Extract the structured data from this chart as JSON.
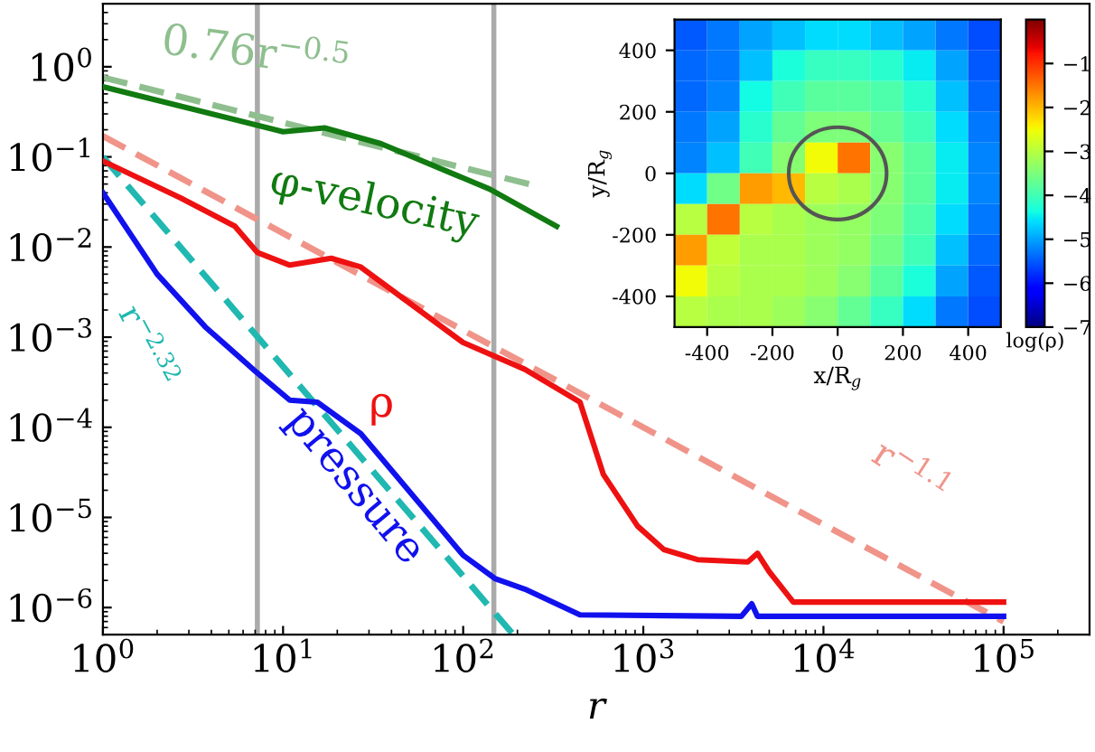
{
  "chart_data": [
    {
      "type": "line",
      "xlabel": "r",
      "log": "xy",
      "grid": false,
      "legend": false,
      "xlim": [
        1,
        300000
      ],
      "ylim": [
        5e-07,
        5
      ],
      "xticks": [
        {
          "value": 1,
          "label": "10$^{0}$"
        },
        {
          "value": 10,
          "label": "10$^{1}$"
        },
        {
          "value": 100,
          "label": "10$^{2}$"
        },
        {
          "value": 1000,
          "label": "10$^{3}$"
        },
        {
          "value": 10000,
          "label": "10$^{4}$"
        },
        {
          "value": 100000,
          "label": "10$^{5}$"
        }
      ],
      "yticks": [
        {
          "value": 1,
          "label": "10$^{0}$"
        },
        {
          "value": 0.1,
          "label": "10$^{−1}$"
        },
        {
          "value": 0.01,
          "label": "10$^{−2}$"
        },
        {
          "value": 0.001,
          "label": "10$^{−3}$"
        },
        {
          "value": 0.0001,
          "label": "10$^{−4}$"
        },
        {
          "value": 1e-05,
          "label": "10$^{−5}$"
        },
        {
          "value": 1e-06,
          "label": "10$^{−6}$"
        }
      ],
      "series": [
        {
          "name": "0.76r$^{−0.5}$",
          "color": "#8fbf8f",
          "line_style": "dashed",
          "x": [
            1,
            250
          ],
          "values": [
            0.76,
            0.048
          ]
        },
        {
          "name": "r$^{−1.1}$",
          "color": "#f0948a",
          "line_style": "dashed",
          "x": [
            1,
            100000
          ],
          "values": [
            0.17,
            7e-07
          ]
        },
        {
          "name": "r$^{−2.32}$",
          "color": "#20b8b0",
          "line_style": "dashed",
          "x": [
            1,
            190
          ],
          "values": [
            0.1,
            5e-07
          ]
        },
        {
          "name": "φ-velocity",
          "color": "#117a11",
          "line_style": "solid",
          "x": [
            1,
            10,
            17,
            35,
            140,
            330
          ],
          "values": [
            0.6,
            0.19,
            0.21,
            0.14,
            0.044,
            0.017
          ]
        },
        {
          "name": "ρ",
          "color": "#ee1111",
          "line_style": "solid",
          "x": [
            1,
            2.7,
            5.4,
            7.2,
            10.9,
            18.5,
            27,
            100,
            220,
            445,
            600,
            930,
            1300,
            2000,
            3800,
            4300,
            5000,
            6800,
            100000
          ],
          "values": [
            0.09,
            0.035,
            0.017,
            0.0087,
            0.0063,
            0.0075,
            0.006,
            0.00087,
            0.00044,
            0.00019,
            3e-05,
            8e-06,
            4.4e-06,
            3.4e-06,
            3.2e-06,
            4e-06,
            2.5e-06,
            1.15e-06,
            1.15e-06
          ]
        },
        {
          "name": "pressure",
          "color": "#1111ee",
          "line_style": "solid",
          "x": [
            1,
            2,
            3.7,
            7.2,
            10.9,
            15.5,
            27,
            100,
            150,
            220,
            445,
            3500,
            4000,
            4300,
            100000
          ],
          "values": [
            0.04,
            0.005,
            0.0013,
            0.0004,
            0.0002,
            0.00019,
            8.5e-05,
            3.8e-06,
            2.1e-06,
            1.6e-06,
            8.3e-07,
            8e-07,
            1.1e-06,
            8e-07,
            8e-07
          ]
        }
      ],
      "ref_lines": [
        {
          "axis": "x",
          "value": 7.2,
          "color": "#aaaaaa"
        },
        {
          "axis": "x",
          "value": 148,
          "color": "#aaaaaa"
        }
      ]
    },
    {
      "type": "heatmap",
      "xlabel": "x/R$_{g}$",
      "ylabel": "y/R$_{g}$",
      "clabel": "log(ρ)",
      "xlim": [
        -500,
        500
      ],
      "ylim": [
        -500,
        500
      ],
      "xticks": [
        {
          "value": -400,
          "label": "-400"
        },
        {
          "value": -200,
          "label": "-200"
        },
        0,
        200,
        400
      ],
      "yticks": [
        {
          "value": -400,
          "label": "-400"
        },
        {
          "value": -200,
          "label": "-200"
        },
        0,
        200,
        400
      ],
      "clim": [
        -7,
        0
      ],
      "cticks": [
        -1,
        -2,
        -3,
        -4,
        -5,
        -6,
        -7
      ],
      "x": [
        -450,
        -350,
        -250,
        -150,
        -50,
        50,
        150,
        250,
        350,
        450
      ],
      "cells": [
        [
          -5.5,
          -5.3,
          -5.0,
          -4.8,
          -4.6,
          -4.6,
          -4.8,
          -5.0,
          -5.3,
          -5.6
        ],
        [
          -5.4,
          -5.3,
          -4.8,
          -4.3,
          -4.1,
          -4.1,
          -4.2,
          -4.5,
          -5.0,
          -5.5
        ],
        [
          -5.4,
          -5.2,
          -4.4,
          -4.0,
          -3.8,
          -3.8,
          -3.9,
          -4.2,
          -4.8,
          -5.4
        ],
        [
          -5.3,
          -5.0,
          -4.2,
          -3.7,
          -3.5,
          -3.5,
          -3.7,
          -4.0,
          -4.6,
          -5.3
        ],
        [
          -5.2,
          -4.8,
          -4.0,
          -3.4,
          -2.5,
          -1.5,
          -3.4,
          -3.8,
          -4.5,
          -5.2
        ],
        [
          -4.6,
          -3.6,
          -1.8,
          -2.0,
          -3.0,
          -3.1,
          -3.4,
          -3.8,
          -4.5,
          -5.2
        ],
        [
          -3.0,
          -1.5,
          -3.0,
          -3.1,
          -3.2,
          -3.3,
          -3.5,
          -3.9,
          -4.6,
          -5.3
        ],
        [
          -1.8,
          -2.9,
          -3.1,
          -3.1,
          -3.2,
          -3.3,
          -3.6,
          -4.0,
          -4.8,
          -5.4
        ],
        [
          -2.5,
          -3.0,
          -3.1,
          -3.1,
          -3.2,
          -3.4,
          -3.8,
          -4.3,
          -5.0,
          -5.5
        ],
        [
          -3.0,
          -3.1,
          -3.1,
          -3.2,
          -3.4,
          -3.7,
          -4.1,
          -4.6,
          -5.3,
          -5.6
        ]
      ]
    }
  ]
}
